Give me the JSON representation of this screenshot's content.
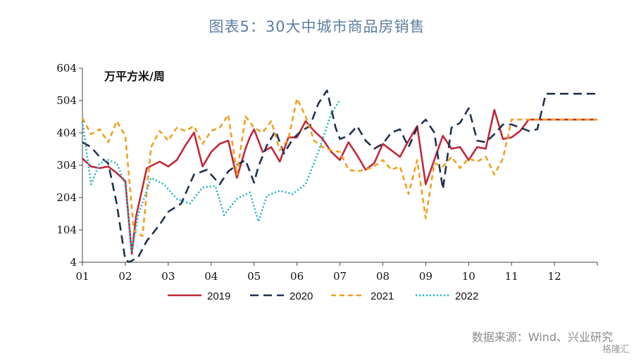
{
  "header": {
    "title": "图表5：30大中城市商品房销售"
  },
  "footer": {
    "source": "数据来源：Wind、兴业研究",
    "watermark": "格隆汇"
  },
  "chart_data": {
    "type": "line",
    "title": "图表5：30大中城市商品房销售",
    "ylabel": "万平方米/周",
    "xlabel": "",
    "ylim": [
      4,
      604
    ],
    "yticks": [
      4,
      104,
      204,
      304,
      404,
      504,
      604
    ],
    "xlim": [
      1,
      13
    ],
    "xticks": [
      1,
      2,
      3,
      4,
      5,
      6,
      7,
      8,
      9,
      10,
      11,
      12
    ],
    "xtick_labels": [
      "01",
      "02",
      "03",
      "04",
      "05",
      "06",
      "07",
      "08",
      "09",
      "10",
      "11",
      "12"
    ],
    "grid": false,
    "legend_position": "bottom",
    "series": [
      {
        "name": "2019",
        "color": "#c0283a",
        "dash": "solid",
        "x": [
          1.0,
          1.2,
          1.4,
          1.6,
          1.8,
          2.0,
          2.15,
          2.25,
          2.5,
          2.8,
          3.0,
          3.2,
          3.4,
          3.6,
          3.8,
          4.0,
          4.2,
          4.4,
          4.6,
          4.8,
          4.9,
          5.0,
          5.2,
          5.4,
          5.6,
          5.8,
          6.0,
          6.2,
          6.4,
          6.6,
          6.8,
          7.0,
          7.2,
          7.4,
          7.6,
          7.8,
          8.0,
          8.2,
          8.4,
          8.6,
          8.8,
          9.0,
          9.2,
          9.4,
          9.6,
          9.8,
          10.0,
          10.2,
          10.4,
          10.6,
          10.8,
          11.0,
          11.2,
          11.4,
          11.6,
          11.8,
          12.0,
          12.2,
          12.4,
          12.6,
          12.8,
          13.0
        ],
        "values": [
          325,
          300,
          295,
          300,
          280,
          255,
          30,
          145,
          295,
          315,
          300,
          320,
          365,
          405,
          300,
          345,
          370,
          380,
          265,
          355,
          390,
          415,
          345,
          360,
          315,
          390,
          390,
          440,
          410,
          385,
          345,
          320,
          375,
          335,
          290,
          310,
          370,
          350,
          330,
          380,
          425,
          245,
          320,
          395,
          355,
          360,
          320,
          360,
          355,
          475,
          385,
          390,
          410,
          445,
          445,
          445,
          445,
          445,
          445,
          445,
          445,
          445
        ]
      },
      {
        "name": "2020",
        "color": "#22324e",
        "dash": "long",
        "x": [
          1.0,
          1.2,
          1.4,
          1.6,
          1.8,
          2.0,
          2.1,
          2.3,
          2.5,
          2.8,
          3.0,
          3.3,
          3.6,
          3.9,
          4.2,
          4.4,
          4.6,
          4.8,
          5.0,
          5.1,
          5.3,
          5.5,
          5.7,
          5.9,
          6.1,
          6.3,
          6.5,
          6.7,
          6.9,
          7.0,
          7.2,
          7.4,
          7.6,
          7.8,
          8.0,
          8.2,
          8.4,
          8.6,
          8.8,
          9.0,
          9.2,
          9.4,
          9.6,
          9.8,
          10.0,
          10.2,
          10.4,
          10.6,
          10.8,
          11.0,
          11.2,
          11.4,
          11.6,
          11.8,
          12.0,
          12.2,
          12.4,
          12.6,
          12.8,
          13.0
        ],
        "values": [
          375,
          360,
          330,
          310,
          185,
          10,
          5,
          20,
          70,
          120,
          160,
          185,
          275,
          290,
          245,
          285,
          305,
          320,
          250,
          300,
          365,
          410,
          340,
          385,
          410,
          425,
          495,
          535,
          420,
          385,
          395,
          425,
          380,
          355,
          370,
          405,
          415,
          360,
          420,
          445,
          405,
          230,
          420,
          435,
          480,
          380,
          375,
          400,
          430,
          430,
          420,
          410,
          415,
          525,
          525,
          525,
          525,
          525,
          525,
          525
        ]
      },
      {
        "name": "2021",
        "color": "#f0a020",
        "dash": "medium",
        "x": [
          1.0,
          1.2,
          1.4,
          1.6,
          1.8,
          2.0,
          2.2,
          2.4,
          2.6,
          2.8,
          3.0,
          3.2,
          3.4,
          3.6,
          3.8,
          4.0,
          4.2,
          4.4,
          4.6,
          4.8,
          5.0,
          5.2,
          5.4,
          5.6,
          5.8,
          6.0,
          6.2,
          6.4,
          6.6,
          6.8,
          7.0,
          7.2,
          7.4,
          7.6,
          7.8,
          8.0,
          8.2,
          8.4,
          8.6,
          8.8,
          9.0,
          9.2,
          9.4,
          9.6,
          9.8,
          10.0,
          10.2,
          10.4,
          10.6,
          10.8,
          11.0,
          11.2,
          11.4,
          11.6,
          11.8,
          12.0,
          12.2,
          12.4,
          12.6,
          12.8,
          13.0
        ],
        "values": [
          450,
          400,
          415,
          375,
          440,
          395,
          100,
          85,
          360,
          410,
          380,
          420,
          410,
          425,
          370,
          410,
          420,
          460,
          275,
          455,
          420,
          405,
          440,
          350,
          385,
          510,
          455,
          380,
          360,
          350,
          345,
          290,
          285,
          290,
          300,
          320,
          290,
          300,
          215,
          320,
          140,
          310,
          300,
          330,
          295,
          325,
          315,
          330,
          275,
          325,
          445,
          445,
          445,
          445,
          445,
          445,
          445,
          445,
          445,
          445,
          445
        ]
      },
      {
        "name": "2022",
        "color": "#1fb5c4",
        "dash": "dotted",
        "x": [
          1.0,
          1.2,
          1.4,
          1.6,
          1.8,
          2.0,
          2.15,
          2.3,
          2.6,
          2.9,
          3.2,
          3.5,
          3.8,
          4.1,
          4.3,
          4.6,
          4.9,
          5.1,
          5.3,
          5.6,
          5.9,
          6.2,
          6.5,
          6.8,
          7.0
        ],
        "values": [
          440,
          245,
          310,
          320,
          310,
          245,
          35,
          150,
          265,
          245,
          200,
          185,
          235,
          240,
          150,
          200,
          220,
          130,
          210,
          225,
          215,
          245,
          345,
          465,
          505
        ]
      }
    ]
  }
}
